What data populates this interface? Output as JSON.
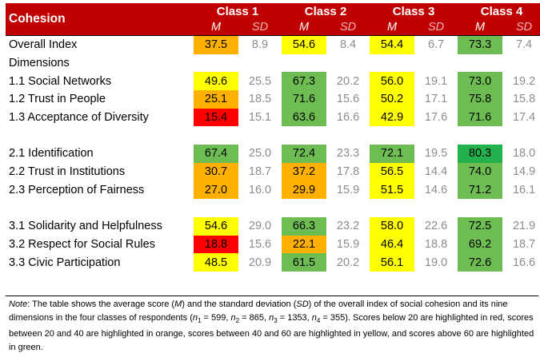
{
  "header": {
    "title": "Cohesion",
    "classes": [
      "Class 1",
      "Class 2",
      "Class 3",
      "Class 4"
    ],
    "m_label": "M",
    "sd_label": "SD"
  },
  "colors": {
    "header_bg": "#c00000",
    "red": "#ff0000",
    "orange": "#ffb000",
    "yellow": "#ffff00",
    "green": "#6dbd52"
  },
  "rows": [
    {
      "label": "Overall Index",
      "values": [
        [
          "37.5",
          "8.9",
          "orange"
        ],
        [
          "54.6",
          "8.4",
          "yellow"
        ],
        [
          "54.4",
          "6.7",
          "yellow"
        ],
        [
          "73.3",
          "7.4",
          "green"
        ]
      ]
    },
    {
      "section": "Dimensions"
    },
    {
      "label": "1.1 Social Networks",
      "values": [
        [
          "49.6",
          "25.5",
          "yellow"
        ],
        [
          "67.3",
          "20.2",
          "green"
        ],
        [
          "56.0",
          "19.1",
          "yellow"
        ],
        [
          "73.0",
          "19.2",
          "green"
        ]
      ]
    },
    {
      "label": "1.2 Trust in People",
      "values": [
        [
          "25.1",
          "18.5",
          "orange"
        ],
        [
          "71.6",
          "15.6",
          "green"
        ],
        [
          "50.2",
          "17.1",
          "yellow"
        ],
        [
          "75.8",
          "15.8",
          "green"
        ]
      ]
    },
    {
      "label": "1.3 Acceptance of Diversity",
      "values": [
        [
          "15.4",
          "15.1",
          "red"
        ],
        [
          "63.6",
          "16.6",
          "green"
        ],
        [
          "42.9",
          "17.6",
          "yellow"
        ],
        [
          "71.6",
          "17.4",
          "green"
        ]
      ]
    },
    {
      "blank": true
    },
    {
      "label": "2.1 Identification",
      "values": [
        [
          "67.4",
          "25.0",
          "green"
        ],
        [
          "72.4",
          "23.3",
          "green"
        ],
        [
          "72.1",
          "19.5",
          "green"
        ],
        [
          "80.3",
          "18.0",
          "green2"
        ]
      ]
    },
    {
      "label": "2.2 Trust in Institutions",
      "values": [
        [
          "30.7",
          "18.7",
          "orange"
        ],
        [
          "37.2",
          "17.8",
          "orange"
        ],
        [
          "56.5",
          "14.4",
          "yellow"
        ],
        [
          "74.0",
          "14.9",
          "green"
        ]
      ]
    },
    {
      "label": "2.3 Perception of Fairness",
      "values": [
        [
          "27.0",
          "16.0",
          "orange"
        ],
        [
          "29.9",
          "15.9",
          "orange"
        ],
        [
          "51.5",
          "14.6",
          "yellow"
        ],
        [
          "71.2",
          "16.1",
          "green"
        ]
      ]
    },
    {
      "blank": true
    },
    {
      "label": "3.1 Solidarity and Helpfulness",
      "values": [
        [
          "54.6",
          "29.0",
          "yellow"
        ],
        [
          "66.3",
          "23.2",
          "green"
        ],
        [
          "58.0",
          "22.6",
          "yellow"
        ],
        [
          "72.5",
          "21.9",
          "green"
        ]
      ]
    },
    {
      "label": "3.2 Respect for Social Rules",
      "values": [
        [
          "18.8",
          "15.6",
          "red"
        ],
        [
          "22.1",
          "15.9",
          "orange"
        ],
        [
          "46.4",
          "18.8",
          "yellow"
        ],
        [
          "69.2",
          "18.7",
          "green"
        ]
      ]
    },
    {
      "label": "3.3 Civic Participation",
      "values": [
        [
          "48.5",
          "20.9",
          "yellow"
        ],
        [
          "61.5",
          "20.2",
          "green"
        ],
        [
          "56.1",
          "19.0",
          "yellow"
        ],
        [
          "72.6",
          "16.6",
          "green"
        ]
      ]
    }
  ],
  "note": {
    "lead": "Note",
    "text_parts": [
      ": The table shows the average score (",
      "M",
      ") and the standard deviation (",
      "SD",
      ") of the overall index of social cohesion and its nine dimensions in the four classes of respondents (",
      "n",
      "1",
      " = 599, ",
      "n",
      "2",
      " = 865, ",
      "n",
      "3",
      " = 1353, ",
      "n",
      "4",
      " = 355). Scores below 20 are highlighted in red, scores between 20 and 40 are highlighted in orange, scores between 40 and 60 are highlighted in yellow, and scores above 60 are highlighted in green."
    ]
  }
}
